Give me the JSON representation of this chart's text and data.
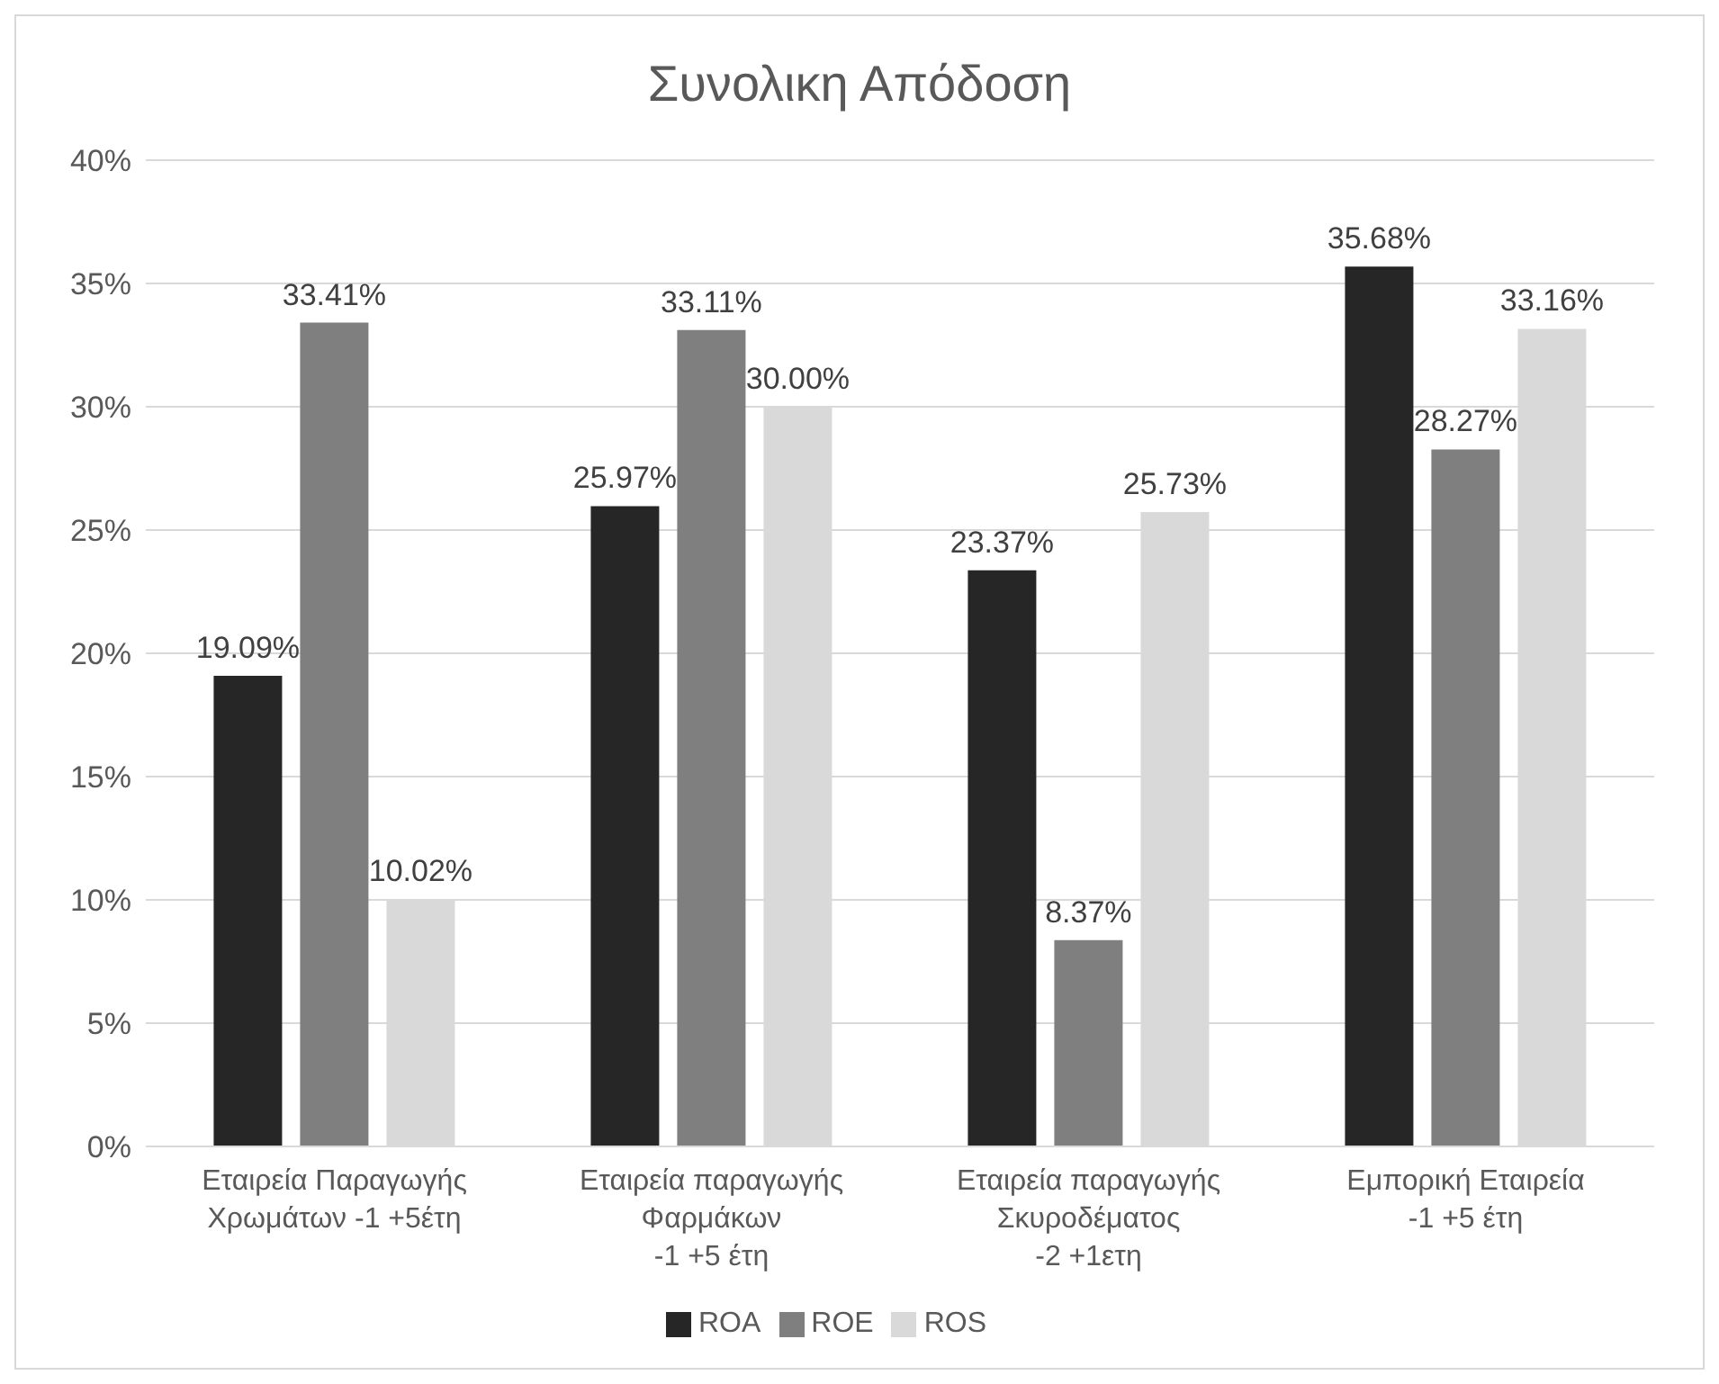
{
  "chart_data": {
    "type": "bar",
    "title": "Συνολικη Απόδοση",
    "categories": [
      "Εταιρεία Παραγωγής\nΧρωμάτων -1 +5έτη",
      "Εταιρεία παραγωγής\nΦαρμάκων\n-1 +5 έτη",
      "Εταιρεία παραγωγής\nΣκυροδέματος\n-2 +1ετη",
      "Εμπορική Εταιρεία\n-1 +5 έτη"
    ],
    "series": [
      {
        "name": "ROA",
        "color": "#262626",
        "values": [
          19.09,
          25.97,
          23.37,
          35.68
        ],
        "value_labels": [
          "19.09%",
          "25.97%",
          "23.37%",
          "35.68%"
        ]
      },
      {
        "name": "ROE",
        "color": "#7f7f7f",
        "values": [
          33.41,
          33.11,
          8.37,
          28.27
        ],
        "value_labels": [
          "33.41%",
          "33.11%",
          "8.37%",
          "28.27%"
        ]
      },
      {
        "name": "ROS",
        "color": "#d9d9d9",
        "values": [
          10.02,
          30.0,
          25.73,
          33.16
        ],
        "value_labels": [
          "10.02%",
          "30.00%",
          "25.73%",
          "33.16%"
        ]
      }
    ],
    "ylim": [
      0,
      40
    ],
    "yticks": [
      {
        "value": 0,
        "label": "0%"
      },
      {
        "value": 5,
        "label": "5%"
      },
      {
        "value": 10,
        "label": "10%"
      },
      {
        "value": 15,
        "label": "15%"
      },
      {
        "value": 20,
        "label": "20%"
      },
      {
        "value": 25,
        "label": "25%"
      },
      {
        "value": 30,
        "label": "30%"
      },
      {
        "value": 35,
        "label": "35%"
      },
      {
        "value": 40,
        "label": "40%"
      }
    ],
    "grid": "y",
    "legend": "bottom"
  }
}
